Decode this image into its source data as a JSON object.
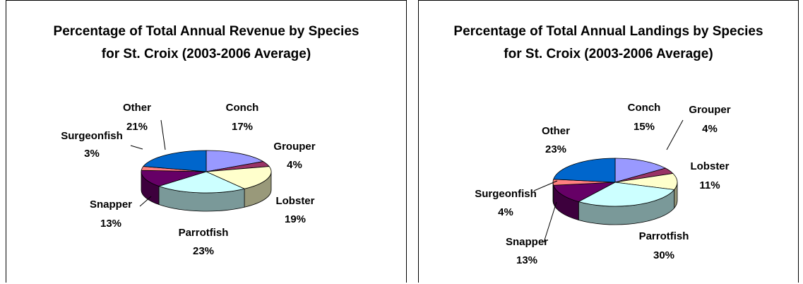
{
  "chart_data": [
    {
      "type": "pie3d",
      "title": "Percentage of Total Annual Revenue by Species for St. Croix (2003-2006 Average)",
      "categories": [
        "Conch",
        "Grouper",
        "Lobster",
        "Parrotfish",
        "Snapper",
        "Surgeonfish",
        "Other"
      ],
      "values": [
        17,
        4,
        19,
        23,
        13,
        3,
        21
      ],
      "value_labels": [
        "17%",
        "4%",
        "19%",
        "23%",
        "13%",
        "3%",
        "21%"
      ],
      "colors": [
        "#9999ff",
        "#993366",
        "#ffffcc",
        "#ccffff",
        "#660066",
        "#ff8080",
        "#0066cc"
      ]
    },
    {
      "type": "pie3d",
      "title": "Percentage of Total Annual Landings by Species for St. Croix (2003-2006 Average)",
      "categories": [
        "Conch",
        "Grouper",
        "Lobster",
        "Parrotfish",
        "Snapper",
        "Surgeonfish",
        "Other"
      ],
      "values": [
        15,
        4,
        11,
        30,
        13,
        4,
        23
      ],
      "value_labels": [
        "15%",
        "4%",
        "11%",
        "30%",
        "13%",
        "4%",
        "23%"
      ],
      "colors": [
        "#9999ff",
        "#993366",
        "#ffffcc",
        "#ccffff",
        "#660066",
        "#ff8080",
        "#0066cc"
      ]
    }
  ]
}
